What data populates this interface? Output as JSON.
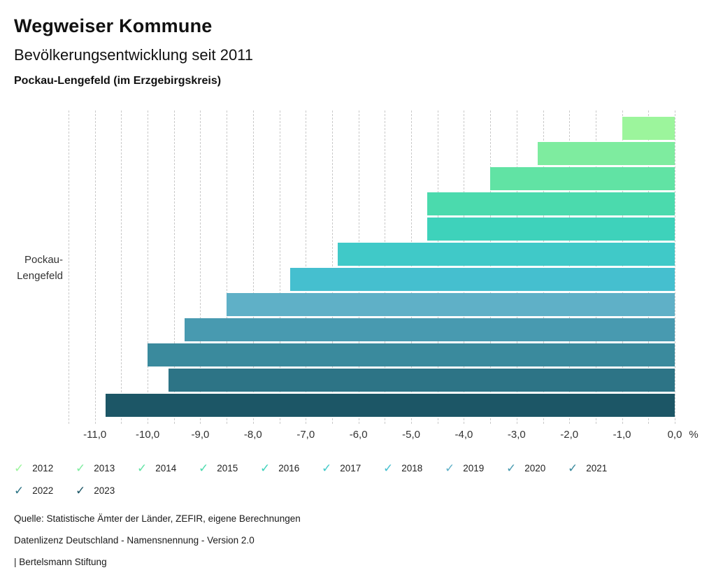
{
  "header": {
    "title": "Wegweiser Kommune",
    "subtitle": "Bevölkerungsentwicklung seit 2011",
    "location": "Pockau-Lengefeld (im Erzgebirgskreis)"
  },
  "chart_data": {
    "type": "bar",
    "orientation": "horizontal",
    "title": "Bevölkerungsentwicklung seit 2011",
    "category": "Pockau-Lengefeld",
    "category_label_lines": [
      "Pockau-",
      "Lengefeld"
    ],
    "xlabel": "%",
    "unit": "%",
    "xlim": [
      -11.5,
      0
    ],
    "grid_step": 0.5,
    "grid": true,
    "legend_position": "bottom",
    "series": [
      {
        "name": "2012",
        "value": -1.0,
        "color": "#9cf59c"
      },
      {
        "name": "2013",
        "value": -2.6,
        "color": "#7eec9f"
      },
      {
        "name": "2014",
        "value": -3.5,
        "color": "#61e3a4"
      },
      {
        "name": "2015",
        "value": -4.7,
        "color": "#4bdaad"
      },
      {
        "name": "2016",
        "value": -4.7,
        "color": "#3ed2bb"
      },
      {
        "name": "2017",
        "value": -6.4,
        "color": "#40c9c8"
      },
      {
        "name": "2018",
        "value": -7.3,
        "color": "#45bfcf"
      },
      {
        "name": "2019",
        "value": -8.5,
        "color": "#5fb0c7"
      },
      {
        "name": "2020",
        "value": -9.3,
        "color": "#489ab0"
      },
      {
        "name": "2021",
        "value": -10.0,
        "color": "#3a8a9d"
      },
      {
        "name": "2022",
        "value": -9.6,
        "color": "#2d7486"
      },
      {
        "name": "2023",
        "value": -10.8,
        "color": "#1c5666"
      }
    ],
    "x_ticks": [
      {
        "value": -11,
        "label": "-11,0"
      },
      {
        "value": -10,
        "label": "-10,0"
      },
      {
        "value": -9,
        "label": "-9,0"
      },
      {
        "value": -8,
        "label": "-8,0"
      },
      {
        "value": -7,
        "label": "-7,0"
      },
      {
        "value": -6,
        "label": "-6,0"
      },
      {
        "value": -5,
        "label": "-5,0"
      },
      {
        "value": -4,
        "label": "-4,0"
      },
      {
        "value": -3,
        "label": "-3,0"
      },
      {
        "value": -2,
        "label": "-2,0"
      },
      {
        "value": -1,
        "label": "-1,0"
      },
      {
        "value": 0,
        "label": "0,0"
      }
    ],
    "legend_check_glyph": "✓"
  },
  "footer": {
    "source": "Quelle: Statistische Ämter der Länder, ZEFIR, eigene Berechnungen",
    "license": "Datenlizenz Deutschland - Namensnennung - Version 2.0",
    "publisher": "| Bertelsmann Stiftung"
  }
}
